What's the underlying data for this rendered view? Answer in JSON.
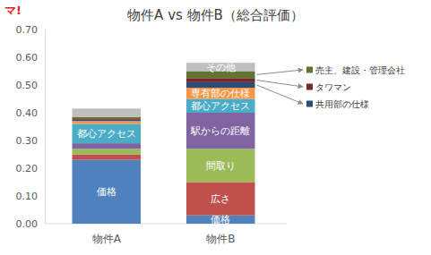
{
  "chart_data": {
    "type": "bar",
    "title": "物件A vs 物件B（総合評価）",
    "annotations": [
      "マ!"
    ],
    "categories": [
      "物件A",
      "物件B"
    ],
    "stacked": true,
    "grid": false,
    "legend": "right",
    "ylim": [
      0,
      0.7
    ],
    "yticks": [
      {
        "value": 0,
        "label": "0.00"
      },
      {
        "value": 0.1,
        "label": "0.10"
      },
      {
        "value": 0.2,
        "label": "0.20"
      },
      {
        "value": 0.3,
        "label": "0.30"
      },
      {
        "value": 0.4,
        "label": "0.40"
      },
      {
        "value": 0.5,
        "label": "0.50"
      },
      {
        "value": 0.6,
        "label": "0.60"
      },
      {
        "value": 0.7,
        "label": "0.70"
      }
    ],
    "series": [
      {
        "name": "価格",
        "color": "#4f81bd",
        "values": [
          0.23,
          0.03
        ]
      },
      {
        "name": "広さ",
        "color": "#c0504d",
        "values": [
          0.02,
          0.12
        ]
      },
      {
        "name": "間取り",
        "color": "#9bbb59",
        "values": [
          0.02,
          0.12
        ]
      },
      {
        "name": "駅からの距離",
        "color": "#8064a2",
        "values": [
          0.02,
          0.13
        ]
      },
      {
        "name": "都心アクセス",
        "color": "#4bacc6",
        "values": [
          0.07,
          0.05
        ]
      },
      {
        "name": "専有部の仕様",
        "color": "#f79646",
        "values": [
          0.01,
          0.04
        ]
      },
      {
        "name": "共用部の仕様",
        "color": "#2c4d75",
        "values": [
          0.005,
          0.02
        ]
      },
      {
        "name": "タワマン",
        "color": "#772c2a",
        "values": [
          0.005,
          0.015
        ]
      },
      {
        "name": "売主、建設・管理会社",
        "color": "#5f7530",
        "values": [
          0.005,
          0.025
        ]
      },
      {
        "name": "その他",
        "color": "#bfbfbf",
        "values": [
          0.03,
          0.03
        ]
      }
    ]
  }
}
